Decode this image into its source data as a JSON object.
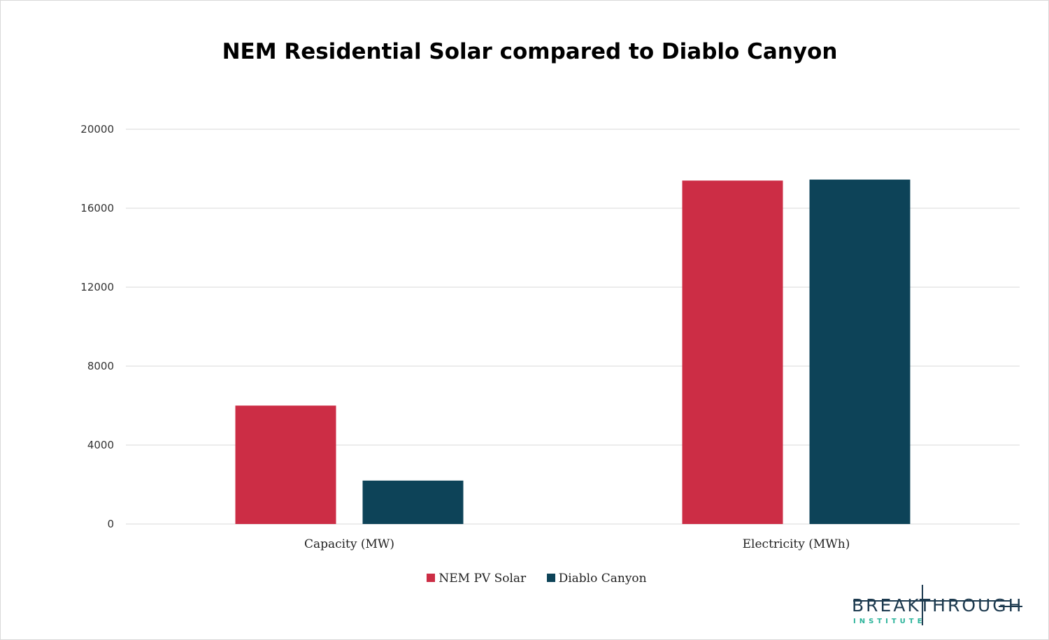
{
  "chart_data": {
    "type": "bar",
    "title": "NEM Residential Solar compared to Diablo Canyon",
    "categories": [
      "Capacity (MW)",
      "Electricity (MWh)"
    ],
    "series": [
      {
        "name": "NEM PV Solar",
        "color": "#cc2d45",
        "values": [
          6000,
          17400
        ]
      },
      {
        "name": "Diablo Canyon",
        "color": "#0d4358",
        "values": [
          2200,
          17450
        ]
      }
    ],
    "yticks": [
      "0",
      "4000",
      "8000",
      "12000",
      "16000",
      "20000"
    ],
    "ylim": [
      0,
      20000
    ],
    "grid": true,
    "legend": "bottom",
    "xlabel": "",
    "ylabel": ""
  },
  "logo": {
    "word": "BREAKTHROUGH",
    "sub": "INSTITUTE"
  }
}
